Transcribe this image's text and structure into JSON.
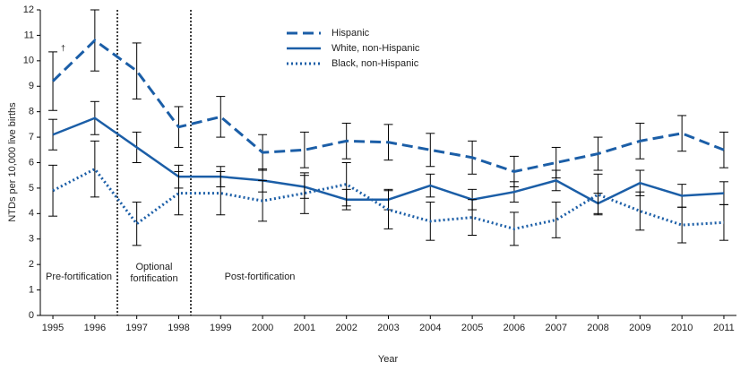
{
  "chart_data": {
    "type": "line",
    "x_label": "Year",
    "y_label": "NTDs per 10,000 live births",
    "x": [
      1995,
      1996,
      1997,
      1998,
      1999,
      2000,
      2001,
      2002,
      2003,
      2004,
      2005,
      2006,
      2007,
      2008,
      2009,
      2010,
      2011
    ],
    "xlim": [
      1994.7,
      2011.3
    ],
    "xticks": [
      1995,
      1996,
      1997,
      1998,
      1999,
      2000,
      2001,
      2002,
      2003,
      2004,
      2005,
      2006,
      2007,
      2008,
      2009,
      2010,
      2011
    ],
    "ylim": [
      0,
      12
    ],
    "yticks": [
      0,
      1,
      2,
      3,
      4,
      5,
      6,
      7,
      8,
      9,
      10,
      11,
      12
    ],
    "legend": "top-center",
    "series": [
      {
        "name": "Hispanic",
        "color": "#1b5ea7",
        "style": "dashed",
        "values": [
          9.2,
          10.8,
          9.6,
          7.4,
          7.8,
          6.4,
          6.5,
          6.85,
          6.8,
          6.5,
          6.2,
          5.65,
          6.0,
          6.35,
          6.85,
          7.15,
          6.5
        ],
        "errors": [
          1.15,
          1.2,
          1.1,
          0.8,
          0.8,
          0.7,
          0.7,
          0.7,
          0.7,
          0.65,
          0.65,
          0.6,
          0.6,
          0.65,
          0.7,
          0.7,
          0.7
        ]
      },
      {
        "name": "White, non-Hispanic",
        "color": "#1b5ea7",
        "style": "solid",
        "values": [
          7.1,
          7.75,
          6.6,
          5.45,
          5.45,
          5.3,
          5.05,
          4.55,
          4.55,
          5.1,
          4.55,
          4.85,
          5.3,
          4.4,
          5.2,
          4.7,
          4.8
        ],
        "errors": [
          0.6,
          0.65,
          0.6,
          0.45,
          0.4,
          0.45,
          0.45,
          0.4,
          0.4,
          0.45,
          0.4,
          0.4,
          0.4,
          0.4,
          0.5,
          0.45,
          0.45
        ]
      },
      {
        "name": "Black, non-Hispanic",
        "color": "#1b5ea7",
        "style": "dotted",
        "values": [
          4.9,
          5.75,
          3.6,
          4.8,
          4.8,
          4.5,
          4.8,
          5.15,
          4.15,
          3.7,
          3.85,
          3.4,
          3.75,
          4.75,
          4.1,
          3.55,
          3.65
        ],
        "errors": [
          1.0,
          1.1,
          0.85,
          0.85,
          0.85,
          0.8,
          0.8,
          0.85,
          0.75,
          0.75,
          0.7,
          0.65,
          0.7,
          0.8,
          0.75,
          0.7,
          0.7
        ]
      }
    ],
    "annotations": {
      "dagger": "†",
      "pre": "Pre-fortification",
      "optional": [
        "Optional",
        "fortification"
      ],
      "post": "Post-fortification"
    }
  }
}
